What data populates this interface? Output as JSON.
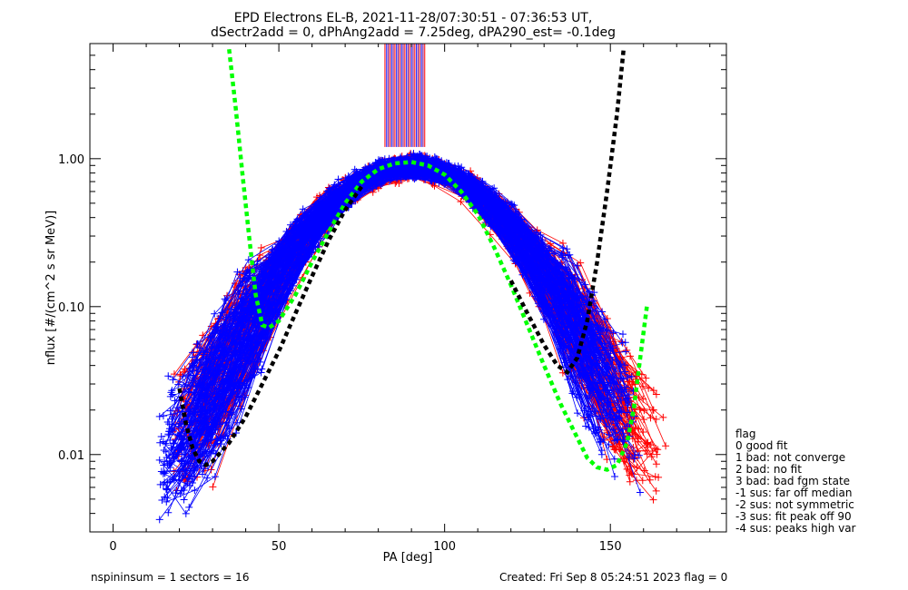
{
  "chart_data": {
    "type": "line",
    "title": "EPD Electrons EL-B, 2021-11-28/07:30:51 - 07:36:53 UT,",
    "subtitle": "dSectr2add = 0, dPhAng2add = 7.25deg, dPA290_est=  -0.1deg",
    "xlabel": "PA [deg]",
    "ylabel": "nflux [#/(cm^2 s sr MeV)]",
    "xlim": [
      -7,
      185
    ],
    "ylim": [
      0.003,
      6.0
    ],
    "yscale": "log",
    "x_ticks": [
      0,
      50,
      100,
      150
    ],
    "x_tick_labels": [
      "0",
      "50",
      "100",
      "150"
    ],
    "y_ticks": [
      0.01,
      0.1,
      1.0
    ],
    "y_tick_labels": [
      "0.01",
      "0.10",
      "1.00"
    ],
    "grid": false,
    "colors": {
      "red": "#ff0000",
      "blue": "#0000ff",
      "green": "#00ff00",
      "black": "#000000"
    },
    "series": [
      {
        "color": "#00ff00",
        "style": "dashed",
        "segments": [
          {
            "x": [
              35,
              37,
              39,
              41,
              43,
              45,
              47,
              50,
              55,
              60,
              65,
              70,
              75,
              80,
              85,
              90,
              95,
              100,
              105,
              110,
              115,
              120,
              125,
              130,
              135,
              140,
              143,
              146,
              149,
              152,
              155,
              157,
              159,
              161
            ],
            "y": [
              5.5,
              2.2,
              0.8,
              0.3,
              0.12,
              0.075,
              0.072,
              0.08,
              0.12,
              0.2,
              0.32,
              0.5,
              0.7,
              0.85,
              0.93,
              0.95,
              0.9,
              0.78,
              0.6,
              0.42,
              0.25,
              0.14,
              0.075,
              0.04,
              0.022,
              0.013,
              0.0095,
              0.0082,
              0.0079,
              0.0085,
              0.012,
              0.02,
              0.045,
              0.1
            ]
          }
        ]
      },
      {
        "color": "#000000",
        "style": "dashed",
        "segments": [
          {
            "x": [
              20,
              22,
              24,
              26,
              28,
              30,
              35,
              40,
              45,
              50,
              55,
              60,
              65,
              70,
              75
            ],
            "y": [
              0.028,
              0.016,
              0.011,
              0.009,
              0.0085,
              0.009,
              0.012,
              0.018,
              0.03,
              0.05,
              0.09,
              0.16,
              0.28,
              0.45,
              0.65
            ]
          },
          {
            "x": [
              120,
              125,
              130,
              134,
              137,
              140,
              143,
              146,
              149,
              152,
              154
            ],
            "y": [
              0.15,
              0.09,
              0.055,
              0.04,
              0.036,
              0.045,
              0.08,
              0.2,
              0.6,
              2.0,
              5.5
            ]
          }
        ]
      }
    ],
    "bundles": [
      {
        "color": "#ff0000",
        "count": 110,
        "seed": 7,
        "x_start": 18,
        "x_end": 168,
        "peak_x": 90,
        "peak_y": 0.88,
        "spread": 0.45
      },
      {
        "color": "#0000ff",
        "count": 170,
        "seed": 3,
        "x_start": 14,
        "x_end": 160,
        "peak_x": 90,
        "peak_y": 0.9,
        "spread": 0.35
      }
    ],
    "upper_spikes": {
      "x_from": 82,
      "x_to": 94,
      "y_bottom": 1.2,
      "colors": [
        "#ff0000",
        "#0000ff",
        "#800080"
      ]
    },
    "legend": {
      "title": "flag",
      "items": [
        "  0 good fit",
        "  1 bad: not converge",
        "  2 bad: no fit",
        "  3 bad: bad fgm state",
        " -1 sus: far off median",
        " -2 sus: not symmetric",
        " -3 sus: fit peak off 90",
        " -4 sus: peaks high var"
      ]
    },
    "footer": {
      "left": "nspininsum =  1  sectors = 16",
      "right": "Created: Fri Sep  8 05:24:51 2023   flag = 0"
    }
  }
}
